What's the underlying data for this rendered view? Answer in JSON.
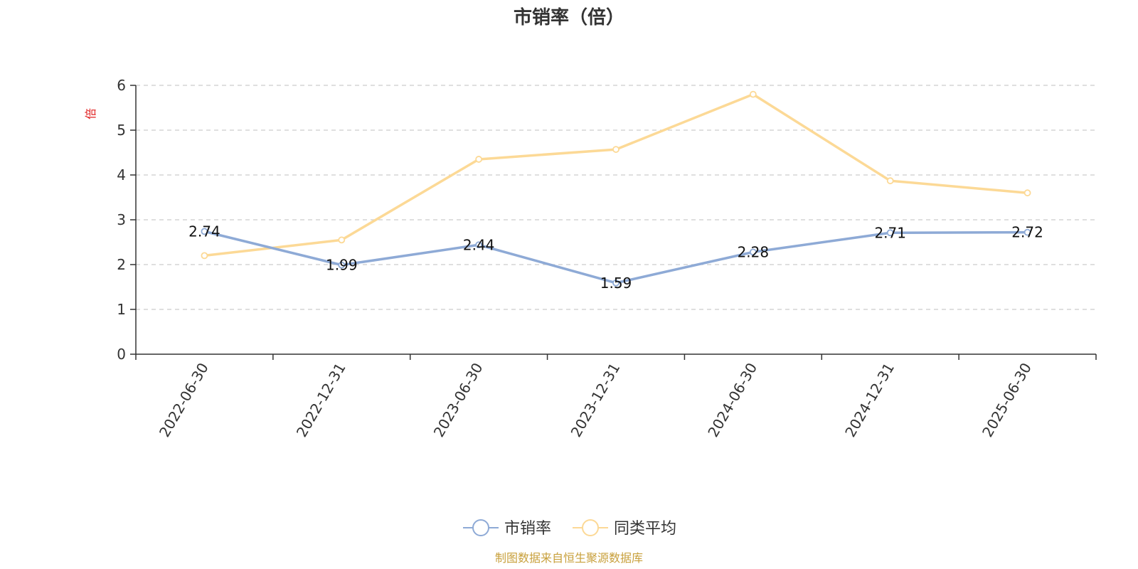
{
  "chart_data": {
    "type": "line",
    "title": "市销率（倍）",
    "ylabel": "倍",
    "categories": [
      "2022-06-30",
      "2022-12-31",
      "2023-06-30",
      "2023-12-31",
      "2024-06-30",
      "2024-12-31",
      "2025-06-30"
    ],
    "ylim": [
      0,
      6
    ],
    "yticks": [
      0,
      1,
      2,
      3,
      4,
      5,
      6
    ],
    "grid": true,
    "legend_position": "bottom-center",
    "series": [
      {
        "name": "市销率",
        "values": [
          2.74,
          1.99,
          2.44,
          1.59,
          2.28,
          2.71,
          2.72
        ],
        "color": "#8eaad6",
        "show_labels": true
      },
      {
        "name": "同类平均",
        "values": [
          2.2,
          2.55,
          4.35,
          4.57,
          5.8,
          3.87,
          3.6
        ],
        "color": "#fcd996",
        "show_labels": false
      }
    ]
  },
  "footer": {
    "text": "制图数据来自恒生聚源数据库",
    "color": "#c8a03c"
  }
}
